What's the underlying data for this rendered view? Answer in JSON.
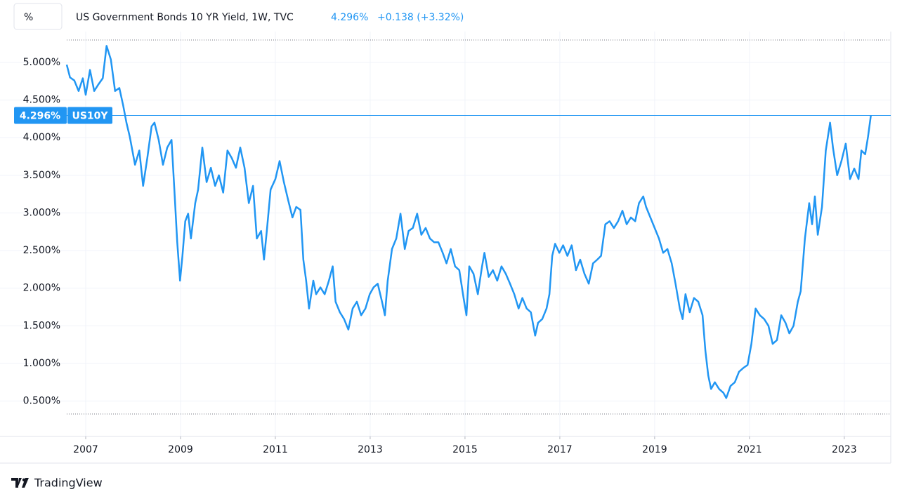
{
  "unit_button": "%",
  "brand": "TradingView",
  "chart_data": {
    "type": "line",
    "title": "US Government Bonds 10 YR Yield, 1W, TVC",
    "last_price": "4.296%",
    "change": "+0.138 (+3.32%)",
    "series": [
      {
        "name": "US10Y",
        "color": "#2196f3",
        "x": [
          2006.6,
          2006.67,
          2006.76,
          2006.85,
          2006.94,
          2007.0,
          2007.09,
          2007.18,
          2007.27,
          2007.36,
          2007.44,
          2007.53,
          2007.62,
          2007.71,
          2007.79,
          2007.86,
          2007.93,
          2008.04,
          2008.13,
          2008.21,
          2008.3,
          2008.39,
          2008.45,
          2008.54,
          2008.63,
          2008.72,
          2008.81,
          2008.87,
          2008.93,
          2008.99,
          2009.04,
          2009.1,
          2009.16,
          2009.22,
          2009.31,
          2009.37,
          2009.46,
          2009.55,
          2009.64,
          2009.73,
          2009.81,
          2009.9,
          2009.99,
          2010.08,
          2010.17,
          2010.26,
          2010.35,
          2010.44,
          2010.53,
          2010.61,
          2010.7,
          2010.76,
          2010.82,
          2010.9,
          2011.0,
          2011.09,
          2011.18,
          2011.27,
          2011.36,
          2011.44,
          2011.53,
          2011.59,
          2011.65,
          2011.71,
          2011.8,
          2011.86,
          2011.95,
          2012.04,
          2012.13,
          2012.21,
          2012.27,
          2012.36,
          2012.45,
          2012.54,
          2012.63,
          2012.72,
          2012.81,
          2012.9,
          2012.99,
          2013.07,
          2013.16,
          2013.25,
          2013.31,
          2013.37,
          2013.46,
          2013.55,
          2013.64,
          2013.73,
          2013.81,
          2013.9,
          2013.99,
          2014.08,
          2014.17,
          2014.26,
          2014.35,
          2014.44,
          2014.53,
          2014.61,
          2014.7,
          2014.79,
          2014.88,
          2014.97,
          2015.03,
          2015.09,
          2015.18,
          2015.27,
          2015.36,
          2015.41,
          2015.5,
          2015.59,
          2015.68,
          2015.77,
          2015.86,
          2015.95,
          2016.04,
          2016.13,
          2016.21,
          2016.3,
          2016.39,
          2016.48,
          2016.54,
          2016.63,
          2016.72,
          2016.78,
          2016.84,
          2016.9,
          2016.99,
          2017.07,
          2017.16,
          2017.25,
          2017.34,
          2017.43,
          2017.52,
          2017.61,
          2017.7,
          2017.79,
          2017.87,
          2017.96,
          2018.05,
          2018.14,
          2018.23,
          2018.32,
          2018.41,
          2018.5,
          2018.59,
          2018.67,
          2018.76,
          2018.82,
          2018.91,
          2019.0,
          2019.09,
          2019.18,
          2019.27,
          2019.36,
          2019.44,
          2019.53,
          2019.59,
          2019.65,
          2019.74,
          2019.83,
          2019.92,
          2020.01,
          2020.07,
          2020.13,
          2020.19,
          2020.27,
          2020.36,
          2020.45,
          2020.51,
          2020.6,
          2020.69,
          2020.78,
          2020.87,
          2020.96,
          2021.04,
          2021.13,
          2021.22,
          2021.31,
          2021.4,
          2021.49,
          2021.58,
          2021.67,
          2021.76,
          2021.84,
          2021.93,
          2022.02,
          2022.08,
          2022.17,
          2022.26,
          2022.32,
          2022.38,
          2022.44,
          2022.53,
          2022.61,
          2022.7,
          2022.76,
          2022.85,
          2022.94,
          2023.03,
          2023.12,
          2023.21,
          2023.3,
          2023.36,
          2023.44,
          2023.5,
          2023.56
        ],
        "values": [
          4.97,
          4.8,
          4.76,
          4.62,
          4.79,
          4.57,
          4.9,
          4.62,
          4.71,
          4.79,
          5.22,
          5.04,
          4.62,
          4.66,
          4.43,
          4.2,
          4.01,
          3.64,
          3.83,
          3.36,
          3.73,
          4.15,
          4.2,
          3.97,
          3.64,
          3.87,
          3.97,
          3.31,
          2.61,
          2.1,
          2.43,
          2.89,
          2.99,
          2.66,
          3.13,
          3.31,
          3.87,
          3.41,
          3.6,
          3.36,
          3.5,
          3.27,
          3.83,
          3.73,
          3.6,
          3.87,
          3.6,
          3.13,
          3.36,
          2.66,
          2.76,
          2.38,
          2.76,
          3.31,
          3.45,
          3.69,
          3.41,
          3.17,
          2.94,
          3.08,
          3.04,
          2.38,
          2.1,
          1.73,
          2.1,
          1.92,
          2.01,
          1.92,
          2.1,
          2.29,
          1.82,
          1.68,
          1.59,
          1.45,
          1.73,
          1.82,
          1.64,
          1.73,
          1.92,
          2.01,
          2.06,
          1.82,
          1.64,
          2.1,
          2.52,
          2.66,
          2.99,
          2.52,
          2.76,
          2.8,
          2.99,
          2.71,
          2.8,
          2.66,
          2.61,
          2.61,
          2.47,
          2.33,
          2.52,
          2.29,
          2.24,
          1.87,
          1.64,
          2.29,
          2.19,
          1.92,
          2.29,
          2.47,
          2.15,
          2.24,
          2.1,
          2.29,
          2.19,
          2.06,
          1.92,
          1.73,
          1.87,
          1.73,
          1.68,
          1.37,
          1.54,
          1.59,
          1.73,
          1.92,
          2.43,
          2.59,
          2.47,
          2.57,
          2.43,
          2.57,
          2.24,
          2.38,
          2.19,
          2.06,
          2.33,
          2.38,
          2.43,
          2.85,
          2.89,
          2.8,
          2.89,
          3.03,
          2.85,
          2.94,
          2.89,
          3.13,
          3.22,
          3.08,
          2.94,
          2.8,
          2.66,
          2.47,
          2.52,
          2.33,
          2.06,
          1.73,
          1.59,
          1.92,
          1.68,
          1.87,
          1.82,
          1.64,
          1.17,
          0.84,
          0.66,
          0.75,
          0.66,
          0.61,
          0.54,
          0.7,
          0.75,
          0.89,
          0.94,
          0.98,
          1.26,
          1.73,
          1.64,
          1.59,
          1.5,
          1.26,
          1.31,
          1.64,
          1.54,
          1.4,
          1.5,
          1.82,
          1.96,
          2.66,
          3.13,
          2.85,
          3.22,
          2.71,
          3.08,
          3.83,
          4.2,
          3.87,
          3.5,
          3.69,
          3.92,
          3.45,
          3.59,
          3.45,
          3.83,
          3.78,
          4.01,
          4.296
        ]
      }
    ],
    "xlim": [
      2006.6,
      2023.98
    ],
    "xticks": [
      2007,
      2009,
      2011,
      2013,
      2015,
      2017,
      2019,
      2021,
      2023
    ],
    "ylim": [
      0.03,
      5.41
    ],
    "yticks": [
      {
        "value": 0.5,
        "label": "0.500%"
      },
      {
        "value": 1,
        "label": "1.000%"
      },
      {
        "value": 1.5,
        "label": "1.500%"
      },
      {
        "value": 2,
        "label": "2.000%"
      },
      {
        "value": 2.5,
        "label": "2.500%"
      },
      {
        "value": 3,
        "label": "3.000%"
      },
      {
        "value": 3.5,
        "label": "3.500%"
      },
      {
        "value": 4,
        "label": "4.000%"
      },
      {
        "value": 4.5,
        "label": "4.500%"
      },
      {
        "value": 5,
        "label": "5.000%"
      }
    ],
    "grid": true
  }
}
